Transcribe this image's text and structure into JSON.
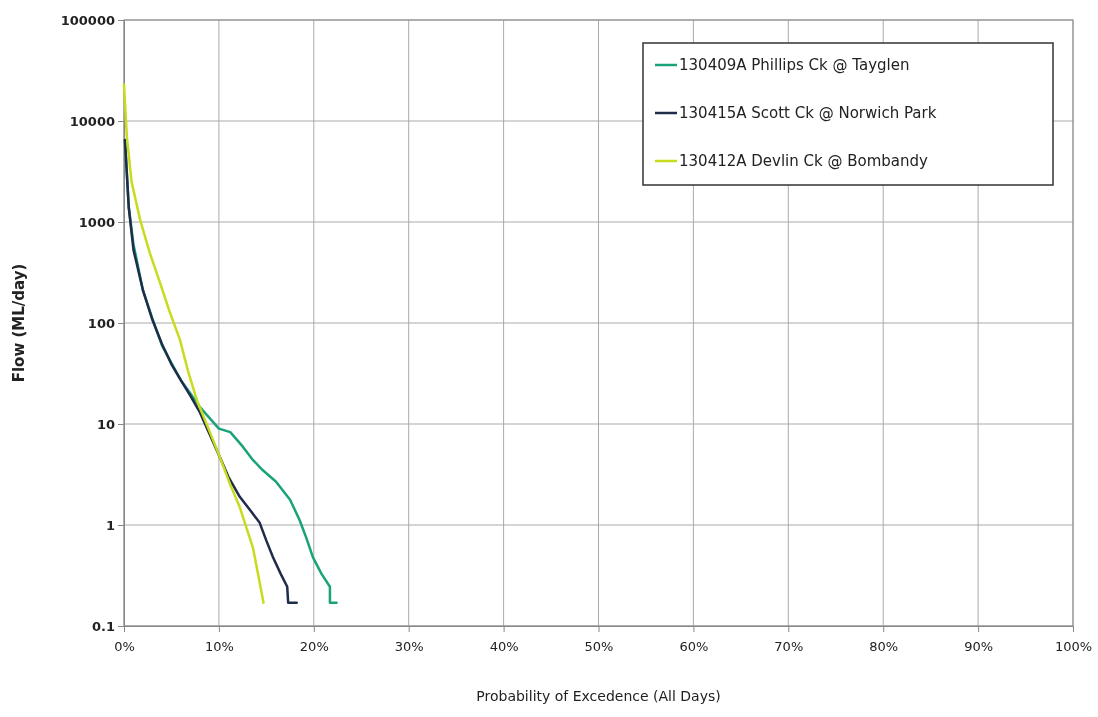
{
  "chart_data": {
    "type": "line",
    "xlabel": "Probability of Excedence (All Days)",
    "ylabel": "Flow (ML/day)",
    "log": "y",
    "grid": true,
    "legend": "top right",
    "marker": "none",
    "line_style": "solid",
    "xlim": [
      0,
      100
    ],
    "xticks": [
      {
        "value": 0,
        "label": "0%"
      },
      {
        "value": 10,
        "label": "10%"
      },
      {
        "value": 20,
        "label": "20%"
      },
      {
        "value": 30,
        "label": "30%"
      },
      {
        "value": 40,
        "label": "40%"
      },
      {
        "value": 50,
        "label": "50%"
      },
      {
        "value": 60,
        "label": "60%"
      },
      {
        "value": 70,
        "label": "70%"
      },
      {
        "value": 80,
        "label": "80%"
      },
      {
        "value": 90,
        "label": "90%"
      },
      {
        "value": 100,
        "label": "100%"
      }
    ],
    "ylim": [
      0.1,
      100000
    ],
    "yticks": [
      0.1,
      1,
      10,
      100,
      1000,
      10000,
      100000
    ],
    "series": [
      {
        "name": "130409A Phillips Ck @ Tayglen",
        "color": "#1aa37a",
        "x": [
          0.1,
          0.5,
          1,
          2,
          3,
          4,
          5,
          6,
          7,
          8,
          9,
          10,
          11.2,
          12.5,
          13.5,
          14.6,
          16,
          17.5,
          18.5,
          19.2,
          19.9,
          20.8,
          21.7,
          21.7,
          22.4
        ],
        "values": [
          6500,
          1400,
          600,
          210,
          110,
          60,
          40,
          27,
          20,
          14.7,
          11.5,
          9,
          8.3,
          6,
          4.5,
          3.5,
          2.7,
          1.78,
          1.12,
          0.75,
          0.48,
          0.33,
          0.245,
          0.17,
          0.17
        ]
      },
      {
        "name": "130415A Scott Ck @ Norwich Park",
        "color": "#1f2d4a",
        "x": [
          0.1,
          0.5,
          1,
          2,
          3,
          4,
          5,
          6,
          7,
          8,
          9,
          10.1,
          11,
          12.2,
          13.3,
          14.3,
          15,
          15.7,
          16.5,
          17.2,
          17.3,
          18.2
        ],
        "values": [
          6500,
          1400,
          530,
          210,
          107,
          62,
          39,
          27,
          19,
          13,
          8,
          4.7,
          3,
          1.9,
          1.4,
          1.05,
          0.7,
          0.48,
          0.33,
          0.245,
          0.17,
          0.17
        ]
      },
      {
        "name": "130412A Devlin Ck @ Bombandy",
        "color": "#c8dc1e",
        "x": [
          0,
          0.3,
          0.8,
          1.7,
          2.7,
          3.8,
          4.8,
          5.9,
          6.8,
          7.7,
          8.9,
          10.1,
          11.2,
          12.2,
          13.6,
          14.2,
          14.7
        ],
        "values": [
          23000,
          7000,
          2500,
          1050,
          500,
          250,
          130,
          68,
          32,
          17,
          9,
          4.7,
          2.5,
          1.5,
          0.59,
          0.3,
          0.17
        ]
      }
    ]
  }
}
